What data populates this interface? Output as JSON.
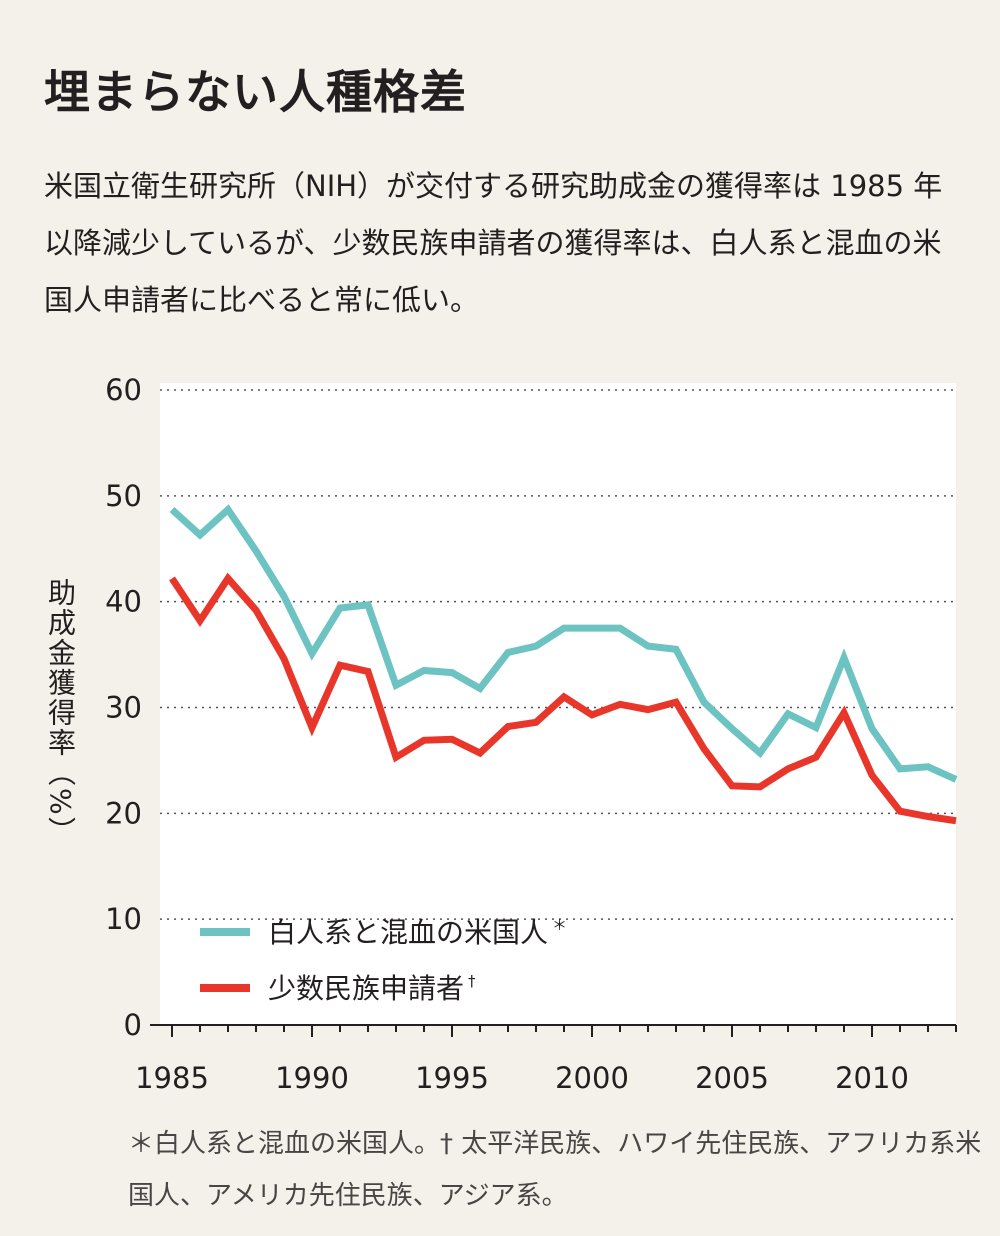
{
  "title": "埋まらない人種格差",
  "lead": "米国立衛生研究所（NIH）が交付する研究助成金の獲得率は 1985 年以降減少しているが、少数民族申請者の獲得率は、白人系と混血の米国人申請者に比べると常に低い。",
  "footnote": "＊白人系と混血の米国人。† 太平洋民族、ハワイ先住民族、アフリカ系米国人、アメリカ先住民族、アジア系。",
  "colors": {
    "series_white": "#6cc3c1",
    "series_minority": "#e8372a",
    "background": "#f3f1ea",
    "plot_background": "#ffffff"
  },
  "chart_data": {
    "type": "line",
    "ylabel": "助成金獲得率（%）",
    "xlabel": "",
    "xlim": [
      1985,
      2013
    ],
    "ylim": [
      0,
      60
    ],
    "xticks": [
      "1985",
      "1990",
      "1995",
      "2000",
      "2005",
      "2010"
    ],
    "yticks": [
      "0",
      "10",
      "20",
      "30",
      "40",
      "50",
      "60"
    ],
    "grid": "horizontal dotted",
    "legend_position": "bottom-left",
    "x": [
      1985,
      1986,
      1987,
      1988,
      1989,
      1990,
      1991,
      1992,
      1993,
      1994,
      1995,
      1996,
      1997,
      1998,
      1999,
      2000,
      2001,
      2002,
      2003,
      2004,
      2005,
      2006,
      2007,
      2008,
      2009,
      2010,
      2011,
      2012,
      2013
    ],
    "series": [
      {
        "name": "白人系と混血の米国人",
        "marker": "＊",
        "values": [
          48.7,
          46.3,
          48.7,
          44.8,
          40.5,
          35.1,
          39.4,
          39.7,
          32.1,
          33.5,
          33.3,
          31.8,
          35.2,
          35.8,
          37.5,
          37.5,
          37.5,
          35.8,
          35.5,
          30.5,
          28.0,
          25.7,
          29.4,
          28.1,
          34.7,
          28.0,
          24.2,
          24.4,
          23.2
        ]
      },
      {
        "name": "少数民族申請者",
        "marker": "†",
        "values": [
          42.2,
          38.2,
          42.2,
          39.2,
          34.6,
          28.1,
          34.0,
          33.4,
          25.3,
          26.9,
          27.0,
          25.7,
          28.2,
          28.6,
          31.0,
          29.3,
          30.3,
          29.8,
          30.5,
          26.1,
          22.6,
          22.5,
          24.2,
          25.3,
          29.5,
          23.6,
          20.2,
          19.7,
          19.3
        ]
      }
    ]
  }
}
